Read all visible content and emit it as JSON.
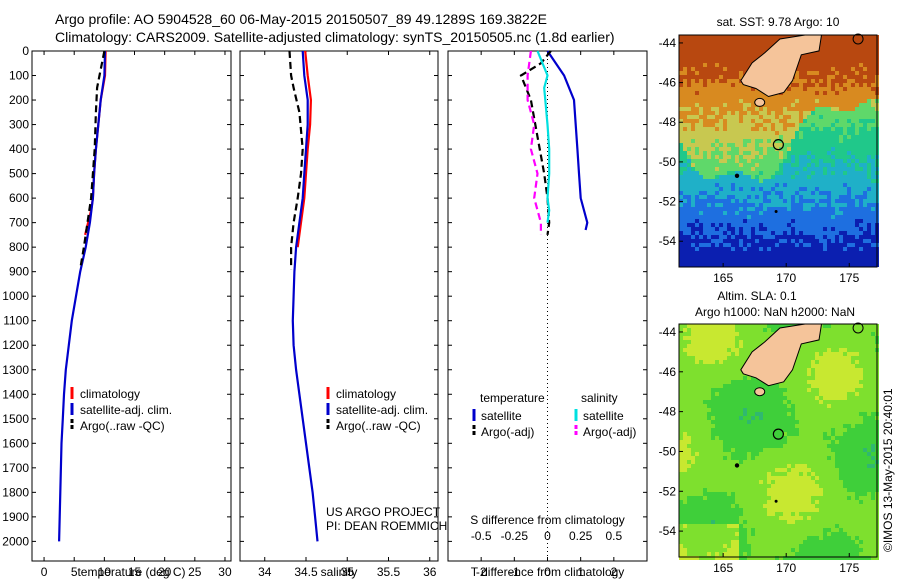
{
  "header": {
    "line1": "Argo profile: AO 5904528_60 06-May-2015 20150507_89 49.1289S 169.3822E",
    "line2": "Climatology: CARS2009. Satellite-adjusted climatology: synTS_20150505.nc (1.8d earlier)"
  },
  "colors": {
    "climatology": "#ff0000",
    "satellite": "#0000cc",
    "argo": "#000000",
    "sal_satellite": "#00e0e0",
    "sal_argo": "#ff00ff",
    "land": "#f5c49a"
  },
  "credits": {
    "line1": "US ARGO PROJECT",
    "line2": "PI: DEAN ROEMMICH"
  },
  "timestamp": "©IMOS 13-May-2015 20:40:01",
  "chart_data": [
    {
      "type": "line",
      "xlabel": "temperature (deg C)",
      "ylabel": "",
      "xlim": [
        -2,
        31
      ],
      "ylim": [
        2080,
        0
      ],
      "xticks": [
        0,
        5,
        10,
        15,
        20,
        25,
        30
      ],
      "yticks": [
        0,
        100,
        200,
        300,
        400,
        500,
        600,
        700,
        800,
        900,
        1000,
        1100,
        1200,
        1300,
        1400,
        1500,
        1600,
        1700,
        1800,
        1900,
        2000
      ],
      "legend": {
        "position": "center-right",
        "entries": [
          "climatology",
          "satellite-adj. clim.",
          "Argo(..raw -QC)"
        ]
      },
      "series": [
        {
          "name": "climatology",
          "style": "solid",
          "color": "#ff0000",
          "x": [
            10.2,
            10.1,
            9.4,
            9.0,
            8.6,
            8.3,
            8.1,
            7.8,
            7.3,
            6.8
          ],
          "y": [
            0,
            100,
            200,
            300,
            400,
            500,
            600,
            650,
            700,
            750
          ]
        },
        {
          "name": "satellite-adj. clim.",
          "style": "solid",
          "color": "#0000cc",
          "x": [
            10.1,
            10.0,
            9.4,
            9.0,
            8.6,
            8.3,
            8.1,
            7.6,
            6.9,
            6.0,
            5.3,
            4.6,
            4.1,
            3.6,
            3.3,
            3.1,
            2.9,
            2.8,
            2.7,
            2.6,
            2.5
          ],
          "y": [
            0,
            100,
            200,
            300,
            400,
            500,
            600,
            700,
            800,
            900,
            1000,
            1100,
            1200,
            1300,
            1400,
            1500,
            1600,
            1700,
            1800,
            1900,
            2000
          ]
        },
        {
          "name": "Argo(..raw -QC)",
          "style": "dashed",
          "color": "#000000",
          "x": [
            10.0,
            9.2,
            8.8,
            8.6,
            8.4,
            8.1,
            7.8,
            7.2,
            6.6,
            6.0
          ],
          "y": [
            0,
            100,
            150,
            250,
            400,
            500,
            600,
            700,
            800,
            890
          ]
        }
      ]
    },
    {
      "type": "line",
      "xlabel": "salinity",
      "ylabel": "",
      "xlim": [
        33.7,
        36.1
      ],
      "ylim": [
        2080,
        0
      ],
      "xticks": [
        34,
        34.5,
        35,
        35.5,
        36
      ],
      "legend": {
        "position": "center-right",
        "entries": [
          "climatology",
          "satellite-adj. clim.",
          "Argo(..raw -QC)"
        ]
      },
      "series": [
        {
          "name": "climatology",
          "style": "solid",
          "color": "#ff0000",
          "x": [
            34.49,
            34.52,
            34.56,
            34.55,
            34.52,
            34.5,
            34.48,
            34.44,
            34.4
          ],
          "y": [
            0,
            100,
            200,
            300,
            400,
            500,
            600,
            700,
            800
          ]
        },
        {
          "name": "satellite-adj. clim.",
          "style": "solid",
          "color": "#0000cc",
          "x": [
            34.46,
            34.48,
            34.52,
            34.52,
            34.5,
            34.48,
            34.46,
            34.42,
            34.38,
            34.36,
            34.35,
            34.34,
            34.35,
            34.38,
            34.42,
            34.46,
            34.5,
            34.54,
            34.58,
            34.61,
            34.64
          ],
          "y": [
            0,
            100,
            200,
            300,
            400,
            500,
            600,
            700,
            800,
            900,
            1000,
            1100,
            1200,
            1300,
            1400,
            1500,
            1600,
            1700,
            1800,
            1900,
            2000
          ]
        },
        {
          "name": "Argo(..raw -QC)",
          "style": "dashed",
          "color": "#000000",
          "x": [
            34.3,
            34.32,
            34.35,
            34.42,
            34.46,
            34.44,
            34.4,
            34.35,
            34.32,
            34.32
          ],
          "y": [
            0,
            100,
            150,
            250,
            400,
            500,
            600,
            700,
            800,
            890
          ]
        }
      ]
    },
    {
      "type": "line",
      "xlabel": "T difference from climatology",
      "xlabel2": "S difference from climatology",
      "xlim": [
        -3,
        3
      ],
      "ylim": [
        2080,
        0
      ],
      "xticks": [
        -2,
        -1,
        0,
        1,
        2
      ],
      "xticks2": [
        "-0.5",
        "-0.25",
        "0",
        "0.25",
        "0.5"
      ],
      "legend": {
        "position": "center",
        "left_title": "temperature",
        "right_title": "salinity",
        "entries": [
          "satellite",
          "Argo(-adj)",
          "satellite",
          "Argo(-adj)"
        ]
      },
      "series": [
        {
          "name": "satellite",
          "quantity": "temperature",
          "style": "solid",
          "color": "#0000cc",
          "x": [
            0.0,
            0.5,
            0.8,
            0.85,
            0.9,
            0.95,
            1.0,
            1.1,
            1.2,
            1.15
          ],
          "y": [
            0,
            100,
            200,
            300,
            400,
            500,
            600,
            650,
            700,
            730
          ]
        },
        {
          "name": "Argo(-adj)",
          "quantity": "temperature",
          "style": "dashed",
          "color": "#000000",
          "x": [
            0.1,
            -0.2,
            -0.8,
            -0.5,
            -0.3,
            -0.1,
            0.0,
            0.05,
            0.0
          ],
          "y": [
            0,
            50,
            100,
            200,
            350,
            500,
            600,
            700,
            750
          ]
        },
        {
          "name": "satellite",
          "quantity": "salinity",
          "style": "solid",
          "color": "#00e0e0",
          "x": [
            -0.3,
            0.0,
            -0.1,
            0.0,
            0.05,
            0.05,
            0.0,
            0.05,
            0.0
          ],
          "y": [
            0,
            100,
            150,
            300,
            400,
            500,
            600,
            650,
            700
          ]
        },
        {
          "name": "Argo(-adj)",
          "quantity": "salinity",
          "style": "dashed",
          "color": "#ff00ff",
          "x": [
            -0.5,
            -0.6,
            -0.6,
            -0.4,
            -0.5,
            -0.3,
            -0.4,
            -0.2,
            -0.2
          ],
          "y": [
            0,
            100,
            200,
            300,
            400,
            500,
            600,
            700,
            750
          ]
        }
      ]
    },
    {
      "type": "heatmap",
      "title": "sat. SST: 9.78 Argo: 10",
      "xticks": [
        165,
        170,
        175
      ],
      "yticks": [
        -44,
        -46,
        -48,
        -50,
        -52,
        -54
      ],
      "xlim": [
        161.5,
        177.2
      ],
      "ylim": [
        -55.3,
        -43.6
      ],
      "argo_position": {
        "lon": 169.38,
        "lat": -49.13
      },
      "colorscale": [
        "#0b1fb0",
        "#1e6fe0",
        "#1fb0c8",
        "#20c88a",
        "#5fd86a",
        "#c8c850",
        "#d88a20",
        "#b84810"
      ]
    },
    {
      "type": "heatmap",
      "title": "Altim. SLA: 0.1",
      "subtitle": "Argo h1000: NaN h2000: NaN",
      "xticks": [
        165,
        170,
        175
      ],
      "yticks": [
        -44,
        -46,
        -48,
        -50,
        -52,
        -54
      ],
      "xlim": [
        161.5,
        177.2
      ],
      "ylim": [
        -55.3,
        -43.6
      ],
      "argo_position": {
        "lon": 169.38,
        "lat": -49.13
      },
      "colorscale": [
        "#30b870",
        "#3fcf3a",
        "#7ee02e",
        "#c8e830",
        "#f0c030"
      ]
    }
  ]
}
